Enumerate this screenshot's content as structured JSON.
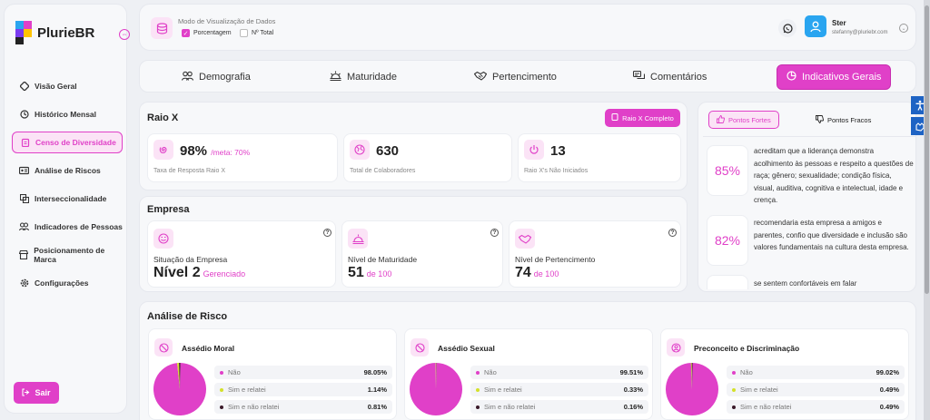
{
  "brand": {
    "name": "PlurieBR"
  },
  "sidebar": {
    "items": [
      {
        "label": "Visão Geral",
        "icon": "diamond-icon"
      },
      {
        "label": "Histórico Mensal",
        "icon": "history-icon"
      },
      {
        "label": "Censo de Diversidade",
        "icon": "clipboard-icon"
      },
      {
        "label": "Análise de Riscos",
        "icon": "id-card-icon"
      },
      {
        "label": "Interseccionalidade",
        "icon": "layers-icon"
      },
      {
        "label": "Indicadores de Pessoas",
        "icon": "people-icon"
      },
      {
        "label": "Posicionamento de Marca",
        "icon": "store-icon"
      },
      {
        "label": "Configurações",
        "icon": "gear-icon"
      }
    ],
    "exit_label": "Sair"
  },
  "topbar": {
    "mode_title": "Modo de Visualização de Dados",
    "opt_percent": "Porcentagem",
    "opt_total": "Nº Total",
    "user_name": "Ster",
    "user_email": "stefanny@pluriebr.com"
  },
  "tabs": [
    "Demografia",
    "Maturidade",
    "Pertencimento",
    "Comentários",
    "Indicativos Gerais"
  ],
  "raio_x": {
    "title": "Raio X",
    "button": "Raio X Completo",
    "metrics": [
      {
        "value": "98%",
        "suffix": "/meta: 70%",
        "caption": "Taxa de Resposta Raio X"
      },
      {
        "value": "630",
        "suffix": "",
        "caption": "Total de Colaboradores"
      },
      {
        "value": "13",
        "suffix": "",
        "caption": "Raio X's Não Iniciados"
      }
    ]
  },
  "empresa": {
    "title": "Empresa",
    "cards": [
      {
        "label": "Situação da Empresa",
        "value": "Nível 2",
        "suffix": "Gerenciado"
      },
      {
        "label": "Nível de Maturidade",
        "value": "51",
        "suffix": "de 100"
      },
      {
        "label": "Nível de Pertencimento",
        "value": "74",
        "suffix": "de 100"
      }
    ]
  },
  "pontos": {
    "tab_fortes": "Pontos Fortes",
    "tab_fracos": "Pontos Fracos",
    "items": [
      {
        "pct": "85%",
        "text": "acreditam que a liderança demonstra acolhimento às pessoas e respeito a questões de raça; gênero; sexualidade; condição física, visual, auditiva, cognitiva e intelectual, idade e crença."
      },
      {
        "pct": "82%",
        "text": "recomendaria esta empresa a amigos e parentes, confio que diversidade e inclusão são valores fundamentais na cultura desta empresa."
      },
      {
        "pct": "",
        "text": "se sentem confortáveis em falar"
      }
    ]
  },
  "risco": {
    "title": "Análise de Risco",
    "cards": [
      {
        "title": "Assédio Moral",
        "rows": [
          {
            "label": "Não",
            "value": "98.05%",
            "color": "#e040c8"
          },
          {
            "label": "Sim e relatei",
            "value": "1.14%",
            "color": "#d4e02a"
          },
          {
            "label": "Sim e não relatei",
            "value": "0.81%",
            "color": "#3a1a2a"
          }
        ],
        "pie": [
          98.05,
          1.14,
          0.81
        ]
      },
      {
        "title": "Assédio Sexual",
        "rows": [
          {
            "label": "Não",
            "value": "99.51%",
            "color": "#e040c8"
          },
          {
            "label": "Sim e relatei",
            "value": "0.33%",
            "color": "#d4e02a"
          },
          {
            "label": "Sim e não relatei",
            "value": "0.16%",
            "color": "#3a1a2a"
          }
        ],
        "pie": [
          99.51,
          0.33,
          0.16
        ]
      },
      {
        "title": "Preconceito e Discriminação",
        "rows": [
          {
            "label": "Não",
            "value": "99.02%",
            "color": "#e040c8"
          },
          {
            "label": "Sim e relatei",
            "value": "0.49%",
            "color": "#d4e02a"
          },
          {
            "label": "Sim e não relatei",
            "value": "0.49%",
            "color": "#3a1a2a"
          }
        ],
        "pie": [
          99.02,
          0.49,
          0.49
        ]
      }
    ]
  },
  "colors": {
    "accent": "#e040c8",
    "accent_soft": "#fbe3f6",
    "avatar": "#2aa5f0",
    "accessibility": "#1e63c4"
  }
}
